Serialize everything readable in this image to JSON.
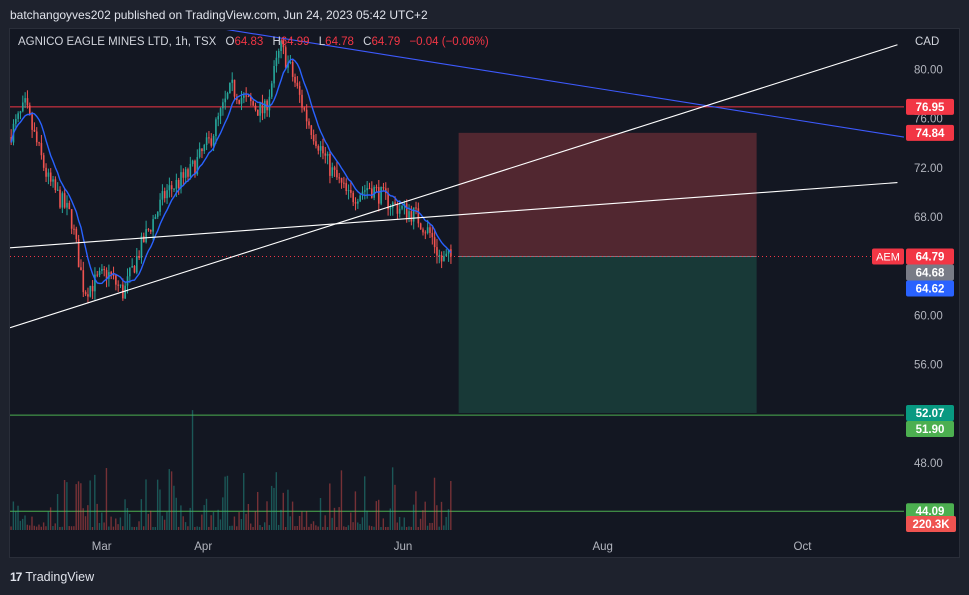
{
  "publisher_line": "batchangoyves202 published on TradingView.com, Jun 24, 2023 05:42 UTC+2",
  "brand": {
    "logo": "17",
    "name": "TradingView"
  },
  "legend": {
    "symbol": "AGNICO EAGLE MINES LTD, 1h, TSX",
    "o_label": "O",
    "o_value": "64.83",
    "h_label": "H",
    "h_value": "64.99",
    "l_label": "L",
    "l_value": "64.78",
    "c_label": "C",
    "c_value": "64.79",
    "change": "−0.04 (−0.06%)"
  },
  "colors": {
    "background": "#131722",
    "up": "#26a69a",
    "down": "#ef5350",
    "ma": "#2962ff",
    "trendline_blue": "#3d5afe",
    "hline_red": "#f23645",
    "hline_green": "#4caf50",
    "stop_zone": "#5d2a32",
    "target_zone": "#1a3d3a"
  },
  "chart_data": {
    "type": "candlestick",
    "title": "AGNICO EAGLE MINES LTD, 1h, TSX",
    "currency": "CAD",
    "ylim": [
      42.4,
      83.2
    ],
    "y_ticks": [
      48,
      52,
      56,
      60,
      64,
      68,
      72,
      76,
      80
    ],
    "y_tick_labels": [
      "48.00",
      "52.00",
      "56.00",
      "60.00",
      "64.00",
      "68.00",
      "72.00",
      "76.00",
      "80.00"
    ],
    "x_ticks": [
      "Mar",
      "Apr",
      "Jun",
      "Aug",
      "Oct"
    ],
    "x_tick_dates": [
      "2023-03-01",
      "2023-04-01",
      "2023-06-01",
      "2023-08-01",
      "2023-10-01"
    ],
    "xlim": [
      "2023-02-01",
      "2023-11-01"
    ],
    "price_path": [
      {
        "date": "2023-02-01",
        "price": 74.5
      },
      {
        "date": "2023-02-06",
        "price": 77.0
      },
      {
        "date": "2023-02-13",
        "price": 71.0
      },
      {
        "date": "2023-02-20",
        "price": 68.0
      },
      {
        "date": "2023-02-24",
        "price": 62.0
      },
      {
        "date": "2023-03-03",
        "price": 63.5
      },
      {
        "date": "2023-03-08",
        "price": 61.8
      },
      {
        "date": "2023-03-14",
        "price": 66.0
      },
      {
        "date": "2023-03-21",
        "price": 70.0
      },
      {
        "date": "2023-03-28",
        "price": 71.5
      },
      {
        "date": "2023-04-03",
        "price": 74.0
      },
      {
        "date": "2023-04-10",
        "price": 78.5
      },
      {
        "date": "2023-04-14",
        "price": 77.5
      },
      {
        "date": "2023-04-20",
        "price": 76.5
      },
      {
        "date": "2023-04-25",
        "price": 81.8
      },
      {
        "date": "2023-04-28",
        "price": 80.0
      },
      {
        "date": "2023-05-03",
        "price": 76.0
      },
      {
        "date": "2023-05-10",
        "price": 72.0
      },
      {
        "date": "2023-05-16",
        "price": 69.5
      },
      {
        "date": "2023-05-22",
        "price": 70.5
      },
      {
        "date": "2023-05-29",
        "price": 69.0
      },
      {
        "date": "2023-06-05",
        "price": 68.2
      },
      {
        "date": "2023-06-10",
        "price": 66.5
      },
      {
        "date": "2023-06-13",
        "price": 64.4
      },
      {
        "date": "2023-06-16",
        "price": 64.79
      }
    ],
    "volume_max_label": "220.3K",
    "price_labels": [
      {
        "value": 76.95,
        "label": "76.95",
        "color": "#f23645"
      },
      {
        "value": 74.84,
        "label": "74.84",
        "color": "#f23645"
      },
      {
        "value": 64.79,
        "label": "64.79",
        "color": "#f23645",
        "tag": "AEM"
      },
      {
        "value": 64.68,
        "label": "64.68",
        "color": "#787b86"
      },
      {
        "value": 64.62,
        "label": "64.62",
        "color": "#2962ff"
      },
      {
        "value": 52.07,
        "label": "52.07",
        "color": "#089981"
      },
      {
        "value": 51.9,
        "label": "51.90",
        "color": "#4caf50"
      },
      {
        "value": 44.09,
        "label": "44.09",
        "color": "#4caf50"
      }
    ],
    "horizontal_lines": [
      {
        "value": 76.95,
        "color": "#f23645"
      },
      {
        "value": 51.9,
        "color": "#4caf50"
      },
      {
        "value": 44.09,
        "color": "#4caf50"
      }
    ],
    "trendlines": [
      {
        "from": {
          "date": "2023-04-02",
          "price": 83.5
        },
        "to": {
          "date": "2023-11-01",
          "price": 74.5
        },
        "color": "#3d5afe"
      },
      {
        "from": {
          "date": "2023-02-01",
          "price": 59.0
        },
        "to": {
          "date": "2023-10-30",
          "price": 82.0
        },
        "color": "#ffffff"
      },
      {
        "from": {
          "date": "2023-02-01",
          "price": 65.5
        },
        "to": {
          "date": "2023-10-30",
          "price": 70.8
        },
        "color": "#ffffff"
      }
    ],
    "position": {
      "entry": 64.79,
      "stop": 74.84,
      "target": 52.07,
      "start": "2023-06-18",
      "end": "2023-09-17"
    }
  }
}
